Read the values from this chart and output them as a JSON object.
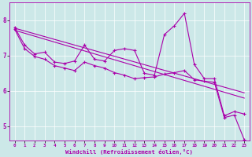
{
  "title": "",
  "xlabel": "Windchill (Refroidissement éolien,°C)",
  "ylabel": "",
  "background_color": "#cce8e8",
  "line_color": "#aa00aa",
  "grid_color": "#ffffff",
  "xlim": [
    -0.5,
    23.5
  ],
  "ylim": [
    4.6,
    8.5
  ],
  "yticks": [
    5,
    6,
    7,
    8
  ],
  "xticks": [
    0,
    1,
    2,
    3,
    4,
    5,
    6,
    7,
    8,
    9,
    10,
    11,
    12,
    13,
    14,
    15,
    16,
    17,
    18,
    19,
    20,
    21,
    22,
    23
  ],
  "series1_x": [
    0,
    1,
    2,
    3,
    4,
    5,
    6,
    7,
    8,
    9,
    10,
    11,
    12,
    13,
    14,
    15,
    16,
    17,
    18,
    19,
    20,
    21,
    22,
    23
  ],
  "series1_y": [
    7.8,
    7.3,
    7.05,
    7.1,
    6.82,
    6.78,
    6.85,
    7.3,
    6.9,
    6.85,
    7.15,
    7.2,
    7.15,
    6.5,
    6.45,
    7.6,
    7.85,
    8.2,
    6.75,
    6.35,
    6.35,
    5.3,
    5.42,
    5.35
  ],
  "series2_x": [
    0,
    1,
    2,
    3,
    4,
    5,
    6,
    7,
    8,
    9,
    10,
    11,
    12,
    13,
    14,
    15,
    16,
    17,
    18,
    19,
    20,
    21,
    22,
    23
  ],
  "series2_y": [
    7.75,
    7.2,
    6.98,
    6.9,
    6.72,
    6.65,
    6.58,
    6.82,
    6.72,
    6.65,
    6.52,
    6.45,
    6.35,
    6.38,
    6.4,
    6.48,
    6.52,
    6.58,
    6.32,
    6.28,
    6.25,
    5.25,
    5.32,
    4.62
  ],
  "series3_x": [
    0,
    23
  ],
  "series3_y": [
    7.78,
    5.95
  ],
  "series4_x": [
    0,
    23
  ],
  "series4_y": [
    7.72,
    5.8
  ]
}
